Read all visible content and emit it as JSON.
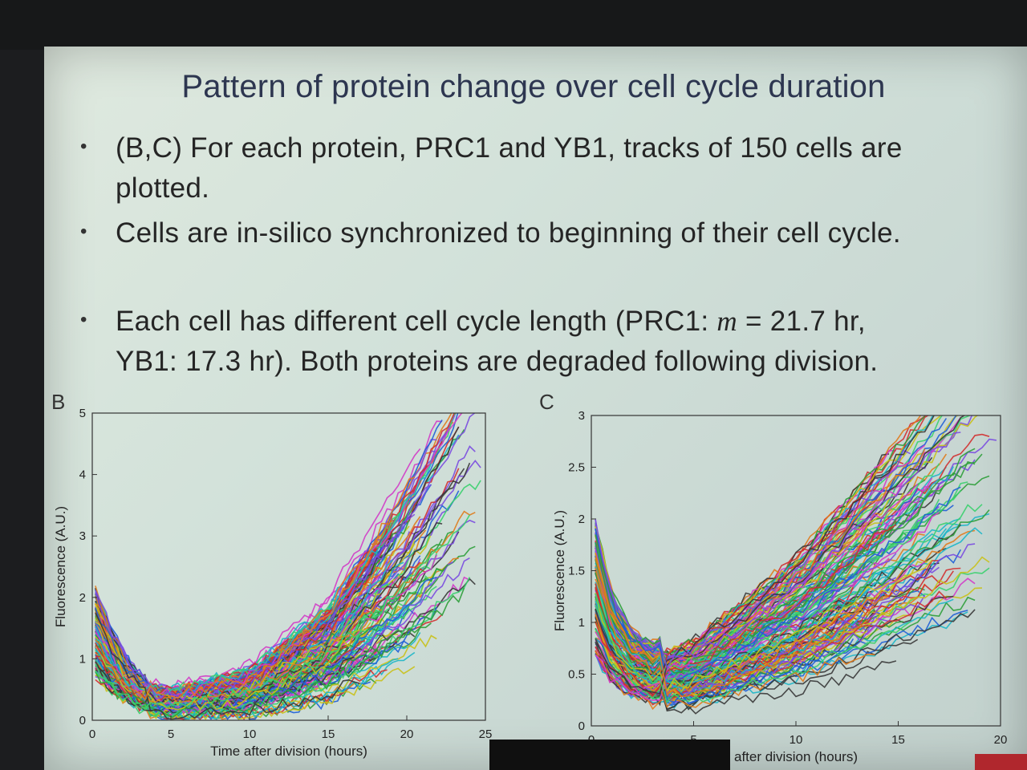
{
  "slide": {
    "title": "Pattern of protein change over cell cycle duration",
    "bullets": [
      {
        "dot": "•",
        "text": "(B,C) For each protein, PRC1 and YB1, tracks of 150 cells are plotted."
      },
      {
        "dot": "•",
        "text": "Cells are in-silico synchronized to beginning of their cell cycle."
      },
      {
        "dot": "•",
        "line1_pre": "Each cell has different cell cycle length (PRC1: ",
        "m": "m",
        "line1_post": " = 21.7 hr,",
        "line2": "YB1: 17.3 hr). Both proteins are degraded following division."
      }
    ]
  },
  "chart_data": [
    {
      "panel": "B",
      "type": "line",
      "xlabel": "Time after division (hours)",
      "ylabel": "Fluorescence (A.U.)",
      "xlim": [
        0,
        25
      ],
      "ylim": [
        0,
        5
      ],
      "xticks": [
        "0",
        "5",
        "10",
        "15",
        "20",
        "25"
      ],
      "yticks": [
        "0",
        "1",
        "2",
        "3",
        "4",
        "5"
      ],
      "n_tracks": 150,
      "cell_cycle_mean_hours": 21.7,
      "typical_profile": {
        "x": [
          0,
          1,
          2,
          3,
          5,
          10,
          15,
          20,
          24
        ],
        "y": [
          1.3,
          0.9,
          0.6,
          0.4,
          0.3,
          0.5,
          1.2,
          2.5,
          3.8
        ]
      }
    },
    {
      "panel": "C",
      "type": "line",
      "xlabel": "after division (hours)",
      "ylabel": "Fluorescence (A.U.)",
      "xlim": [
        0,
        20
      ],
      "ylim": [
        0,
        3
      ],
      "xticks": [
        "0",
        "5",
        "10",
        "15",
        "20"
      ],
      "yticks": [
        "0",
        "0.5",
        "1",
        "1.5",
        "2",
        "2.5",
        "3"
      ],
      "n_tracks": 150,
      "cell_cycle_mean_hours": 17.3,
      "typical_profile": {
        "x": [
          0,
          1,
          2,
          3,
          5,
          10,
          15,
          19
        ],
        "y": [
          1.2,
          0.7,
          0.5,
          0.42,
          0.5,
          1.0,
          1.7,
          2.3
        ]
      }
    }
  ],
  "colors": {
    "palette": [
      "#1f5fd6",
      "#2e9e3a",
      "#d22f2f",
      "#d23bc8",
      "#1cb6c8",
      "#c9c11a",
      "#383838",
      "#7a4be0",
      "#e07b1c",
      "#3ad06e"
    ]
  }
}
